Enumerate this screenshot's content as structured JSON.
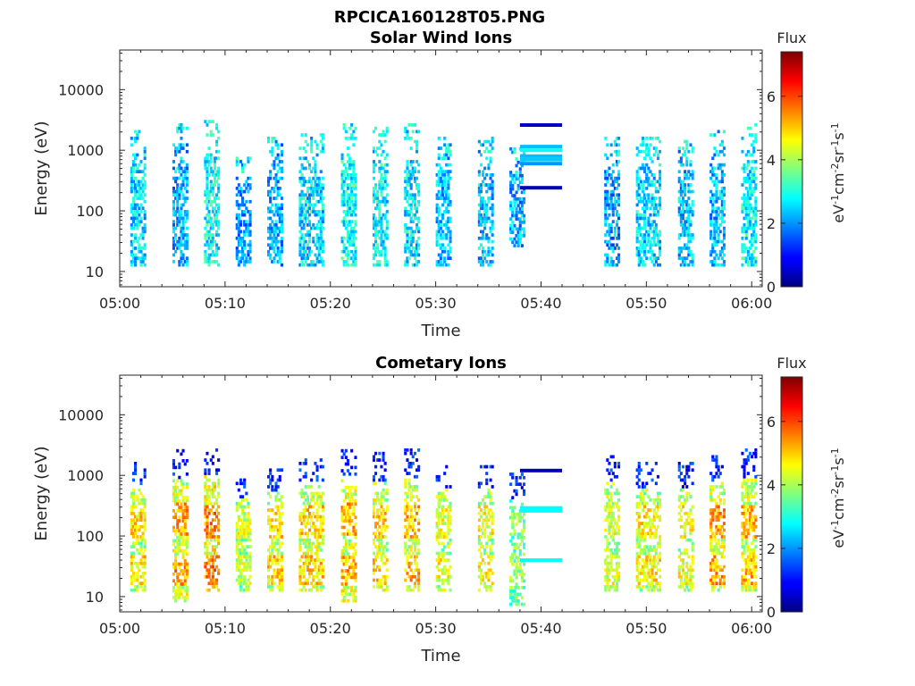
{
  "figure": {
    "title": "RPCICA160128T05.PNG"
  },
  "chart_data": [
    {
      "type": "heatmap",
      "title": "Solar Wind Ions",
      "xlabel": "Time",
      "ylabel": "Energy (eV)",
      "x_ticks": [
        "05:00",
        "05:10",
        "05:20",
        "05:30",
        "05:40",
        "05:50",
        "06:00"
      ],
      "x_range": [
        "05:00",
        "06:01"
      ],
      "y_scale": "log",
      "y_ticks": [
        "10",
        "100",
        "1000",
        "10000"
      ],
      "y_range": [
        5.6,
        45000
      ],
      "colorbar": {
        "title": "Flux",
        "label": "eV-1cm-2sr-1s-1",
        "ticks": [
          "0",
          "2",
          "4",
          "6"
        ],
        "range": [
          0,
          7.4
        ],
        "colormap": "jet"
      },
      "data_summary": "Periodic vertical bursts of flux roughly every 3.2 minutes from 05:01 to 05:38, with intensity mostly 1-3 (blue-cyan) between ~12 eV and ~3000 eV; horizontal bands at about 240, 600-1200 and 2600 eV from 05:38 to 05:42; data gap 05:42-05:46; bursts resume 05:46-06:01.",
      "bursts": [
        {
          "t_start": "05:01",
          "t_end": "05:02",
          "e_min": 12,
          "e_max": 2000,
          "flux": 2.5
        },
        {
          "t_start": "05:05",
          "t_end": "05:06",
          "e_min": 12,
          "e_max": 2500,
          "flux": 2.2
        },
        {
          "t_start": "05:08",
          "t_end": "05:09",
          "e_min": 12,
          "e_max": 3000,
          "flux": 2.8
        },
        {
          "t_start": "05:11",
          "t_end": "05:12",
          "e_min": 12,
          "e_max": 700,
          "flux": 2.0
        },
        {
          "t_start": "05:14",
          "t_end": "05:15",
          "e_min": 12,
          "e_max": 1500,
          "flux": 2.2
        },
        {
          "t_start": "05:17",
          "t_end": "05:19",
          "e_min": 12,
          "e_max": 1800,
          "flux": 2.5
        },
        {
          "t_start": "05:21",
          "t_end": "05:22",
          "e_min": 12,
          "e_max": 2500,
          "flux": 2.8
        },
        {
          "t_start": "05:24",
          "t_end": "05:25",
          "e_min": 12,
          "e_max": 2200,
          "flux": 2.7
        },
        {
          "t_start": "05:27",
          "t_end": "05:28",
          "e_min": 12,
          "e_max": 2500,
          "flux": 2.6
        },
        {
          "t_start": "05:30",
          "t_end": "05:31",
          "e_min": 12,
          "e_max": 1500,
          "flux": 2.3
        },
        {
          "t_start": "05:34",
          "t_end": "05:35",
          "e_min": 12,
          "e_max": 1500,
          "flux": 2.3
        },
        {
          "t_start": "05:37",
          "t_end": "05:38",
          "e_min": 25,
          "e_max": 1000,
          "flux": 2.2
        },
        {
          "t_start": "05:46",
          "t_end": "05:47",
          "e_min": 12,
          "e_max": 1500,
          "flux": 2.1
        },
        {
          "t_start": "05:49",
          "t_end": "05:51",
          "e_min": 12,
          "e_max": 1500,
          "flux": 2.5
        },
        {
          "t_start": "05:53",
          "t_end": "05:54",
          "e_min": 12,
          "e_max": 1600,
          "flux": 2.3
        },
        {
          "t_start": "05:56",
          "t_end": "05:57",
          "e_min": 12,
          "e_max": 2000,
          "flux": 2.3
        },
        {
          "t_start": "05:59",
          "t_end": "06:00",
          "e_min": 12,
          "e_max": 2500,
          "flux": 2.8
        }
      ],
      "bands": [
        {
          "t_start": "05:38",
          "t_end": "05:42",
          "energy": 2600,
          "flux": 0.5
        },
        {
          "t_start": "05:38",
          "t_end": "05:42",
          "energy": 1150,
          "flux": 2.3
        },
        {
          "t_start": "05:38",
          "t_end": "05:42",
          "energy": 1000,
          "flux": 2.8
        },
        {
          "t_start": "05:38",
          "t_end": "05:42",
          "energy": 800,
          "flux": 2.3
        },
        {
          "t_start": "05:38",
          "t_end": "05:42",
          "energy": 700,
          "flux": 2.4
        },
        {
          "t_start": "05:38",
          "t_end": "05:42",
          "energy": 600,
          "flux": 2.0
        },
        {
          "t_start": "05:38",
          "t_end": "05:42",
          "energy": 240,
          "flux": 0.4
        }
      ]
    },
    {
      "type": "heatmap",
      "title": "Cometary Ions",
      "xlabel": "Time",
      "ylabel": "Energy (eV)",
      "x_ticks": [
        "05:00",
        "05:10",
        "05:20",
        "05:30",
        "05:40",
        "05:50",
        "06:00"
      ],
      "x_range": [
        "05:00",
        "06:01"
      ],
      "y_scale": "log",
      "y_ticks": [
        "10",
        "100",
        "1000",
        "10000"
      ],
      "y_range": [
        5.6,
        45000
      ],
      "colorbar": {
        "title": "Flux",
        "label": "eV-1cm-2sr-1s-1",
        "ticks": [
          "0",
          "2",
          "4",
          "6"
        ],
        "range": [
          0,
          7.4
        ],
        "colormap": "jet"
      },
      "data_summary": "Periodic vertical bursts every ~3.2 minutes with the strongest flux (4-6, yellow-orange-red) at about 15-40 eV and 100-300 eV, cyan-green up to ~600 eV and scattered blue points up to ~3000 eV; bands at ~40, 270 and 1200 eV from 05:38 to 05:42; data gap 05:42-05:46.",
      "bursts": [
        {
          "t_start": "05:01",
          "t_end": "05:02",
          "e_min": 12,
          "e_max": 1500,
          "flux": 4.0,
          "peak_flux": 5.5
        },
        {
          "t_start": "05:05",
          "t_end": "05:06",
          "e_min": 8,
          "e_max": 2500,
          "flux": 4.2,
          "peak_flux": 6.0
        },
        {
          "t_start": "05:08",
          "t_end": "05:09",
          "e_min": 12,
          "e_max": 3000,
          "flux": 4.5,
          "peak_flux": 6.2
        },
        {
          "t_start": "05:11",
          "t_end": "05:12",
          "e_min": 12,
          "e_max": 1000,
          "flux": 3.8,
          "peak_flux": 5.0
        },
        {
          "t_start": "05:14",
          "t_end": "05:15",
          "e_min": 12,
          "e_max": 1200,
          "flux": 4.0,
          "peak_flux": 5.6
        },
        {
          "t_start": "05:17",
          "t_end": "05:19",
          "e_min": 12,
          "e_max": 1800,
          "flux": 4.2,
          "peak_flux": 5.6
        },
        {
          "t_start": "05:21",
          "t_end": "05:22",
          "e_min": 8,
          "e_max": 2500,
          "flux": 4.3,
          "peak_flux": 5.8
        },
        {
          "t_start": "05:24",
          "t_end": "05:25",
          "e_min": 12,
          "e_max": 2200,
          "flux": 4.2,
          "peak_flux": 5.6
        },
        {
          "t_start": "05:27",
          "t_end": "05:28",
          "e_min": 12,
          "e_max": 2500,
          "flux": 4.2,
          "peak_flux": 5.8
        },
        {
          "t_start": "05:30",
          "t_end": "05:31",
          "e_min": 12,
          "e_max": 1500,
          "flux": 4.0,
          "peak_flux": 5.2
        },
        {
          "t_start": "05:34",
          "t_end": "05:35",
          "e_min": 12,
          "e_max": 1500,
          "flux": 4.0,
          "peak_flux": 5.2
        },
        {
          "t_start": "05:37",
          "t_end": "05:38",
          "e_min": 7,
          "e_max": 1000,
          "flux": 3.6,
          "peak_flux": 4.5
        },
        {
          "t_start": "05:46",
          "t_end": "05:47",
          "e_min": 12,
          "e_max": 2000,
          "flux": 4.0,
          "peak_flux": 5.0
        },
        {
          "t_start": "05:49",
          "t_end": "05:51",
          "e_min": 12,
          "e_max": 1500,
          "flux": 4.0,
          "peak_flux": 5.4
        },
        {
          "t_start": "05:53",
          "t_end": "05:54",
          "e_min": 12,
          "e_max": 1600,
          "flux": 3.9,
          "peak_flux": 5.2
        },
        {
          "t_start": "05:56",
          "t_end": "05:57",
          "e_min": 12,
          "e_max": 2000,
          "flux": 4.2,
          "peak_flux": 6.0
        },
        {
          "t_start": "05:59",
          "t_end": "06:00",
          "e_min": 12,
          "e_max": 2500,
          "flux": 4.2,
          "peak_flux": 5.8
        }
      ],
      "bands": [
        {
          "t_start": "05:38",
          "t_end": "05:42",
          "energy": 1200,
          "flux": 0.4
        },
        {
          "t_start": "05:38",
          "t_end": "05:42",
          "energy": 290,
          "flux": 2.8
        },
        {
          "t_start": "05:38",
          "t_end": "05:42",
          "energy": 260,
          "flux": 2.8
        },
        {
          "t_start": "05:38",
          "t_end": "05:42",
          "energy": 40,
          "flux": 2.8
        }
      ]
    }
  ]
}
